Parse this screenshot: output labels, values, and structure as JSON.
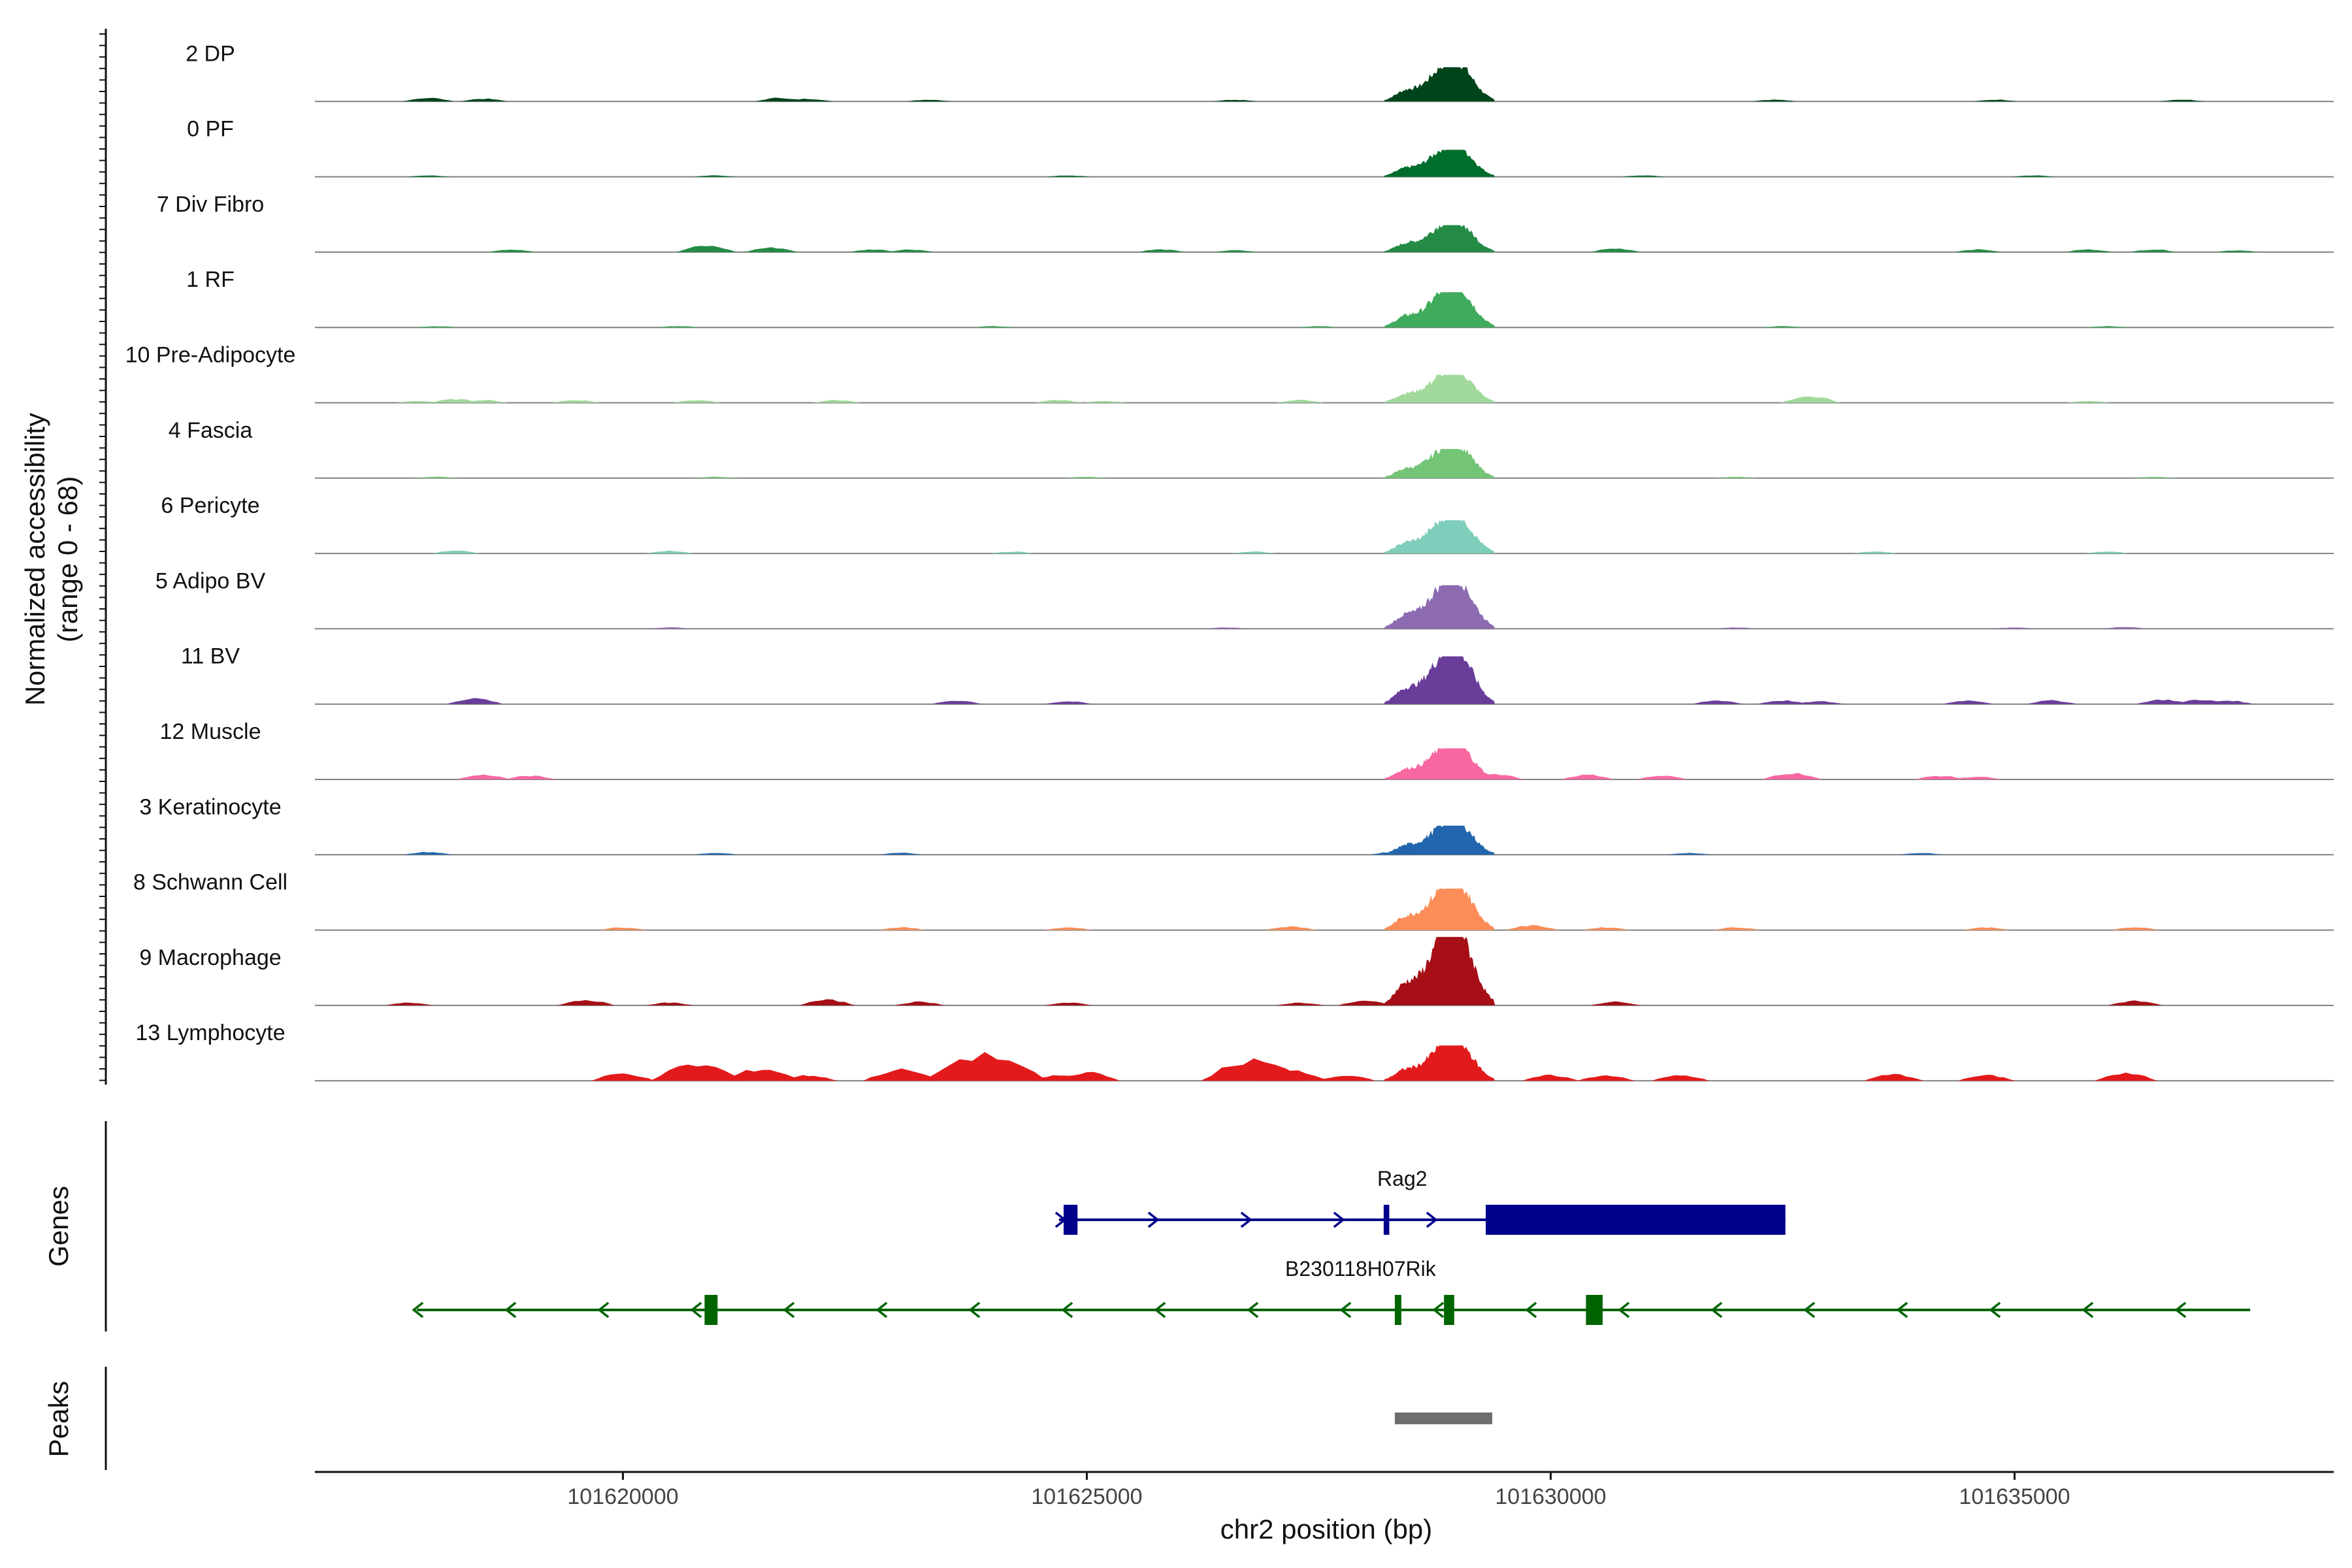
{
  "chart_data": {
    "type": "coverage",
    "chromosome": "chr2",
    "xlabel": "chr2 position (bp)",
    "ylabel_line1": "Normalized accessibility",
    "ylabel_line2": "(range 0 - 68)",
    "y_range": [
      0,
      68
    ],
    "x_range": [
      101616680,
      101638440
    ],
    "x_ticks": [
      101620000,
      101625000,
      101630000,
      101635000
    ],
    "x_tick_labels": [
      "101620000",
      "101625000",
      "101630000",
      "101635000"
    ],
    "tracks": [
      {
        "label": "2 DP",
        "color": "#00441b",
        "main_peak": 33,
        "bumps": [
          [
            101617900,
            4
          ],
          [
            101618500,
            3
          ],
          [
            101621700,
            4
          ],
          [
            101622000,
            3
          ],
          [
            101623300,
            2
          ],
          [
            101626600,
            2
          ],
          [
            101632400,
            2
          ],
          [
            101634800,
            2
          ],
          [
            101636800,
            2
          ]
        ]
      },
      {
        "label": "0 PF",
        "color": "#006d2c",
        "main_peak": 26,
        "bumps": [
          [
            101617900,
            1.5
          ],
          [
            101621000,
            1.5
          ],
          [
            101624800,
            1.5
          ],
          [
            101631000,
            1.5
          ],
          [
            101635200,
            1.5
          ]
        ]
      },
      {
        "label": "7 Div Fibro",
        "color": "#238b45",
        "main_peak": 26,
        "bumps": [
          [
            101618800,
            3
          ],
          [
            101620900,
            7
          ],
          [
            101621600,
            5
          ],
          [
            101622700,
            3
          ],
          [
            101623100,
            3
          ],
          [
            101625800,
            3
          ],
          [
            101626600,
            2
          ],
          [
            101630700,
            4
          ],
          [
            101634600,
            3
          ],
          [
            101635800,
            3
          ],
          [
            101636500,
            3
          ],
          [
            101637400,
            2
          ]
        ]
      },
      {
        "label": "1 RF",
        "color": "#41ab5d",
        "main_peak": 34,
        "bumps": [
          [
            101618000,
            1.5
          ],
          [
            101620600,
            1.5
          ],
          [
            101624000,
            1.5
          ],
          [
            101627500,
            1.5
          ],
          [
            101632500,
            1.5
          ],
          [
            101636000,
            1.5
          ]
        ]
      },
      {
        "label": "10 Pre-Adipocyte",
        "color": "#a1d99b",
        "main_peak": 27,
        "bumps": [
          [
            101617800,
            2
          ],
          [
            101618200,
            4
          ],
          [
            101618500,
            3
          ],
          [
            101619500,
            3
          ],
          [
            101620800,
            3
          ],
          [
            101622300,
            3
          ],
          [
            101624700,
            3
          ],
          [
            101625200,
            2
          ],
          [
            101627300,
            3
          ],
          [
            101632800,
            7
          ],
          [
            101635800,
            2
          ]
        ]
      },
      {
        "label": "4 Fascia",
        "color": "#74c476",
        "main_peak": 28,
        "bumps": [
          [
            101618000,
            1.5
          ],
          [
            101621000,
            1.5
          ],
          [
            101625000,
            1.5
          ],
          [
            101632000,
            1.5
          ],
          [
            101636500,
            1.5
          ]
        ]
      },
      {
        "label": "6 Pericyte",
        "color": "#7fcdbb",
        "main_peak": 32,
        "bumps": [
          [
            101618200,
            3
          ],
          [
            101620500,
            3
          ],
          [
            101624200,
            2
          ],
          [
            101626800,
            2
          ],
          [
            101633500,
            2
          ],
          [
            101636000,
            2
          ]
        ]
      },
      {
        "label": "5 Adipo BV",
        "color": "#8c6bb1",
        "main_peak": 42,
        "bumps": [
          [
            101620500,
            1.5
          ],
          [
            101626500,
            1.5
          ],
          [
            101632000,
            1.5
          ],
          [
            101635000,
            1.5
          ],
          [
            101636200,
            2
          ]
        ]
      },
      {
        "label": "11 BV",
        "color": "#6a3d9a",
        "main_peak": 46,
        "bumps": [
          [
            101618400,
            6
          ],
          [
            101623600,
            4
          ],
          [
            101624800,
            3
          ],
          [
            101631800,
            4
          ],
          [
            101632500,
            4
          ],
          [
            101632900,
            3
          ],
          [
            101634500,
            4
          ],
          [
            101635400,
            4
          ],
          [
            101636600,
            5
          ],
          [
            101637000,
            5
          ],
          [
            101637300,
            4
          ]
        ]
      },
      {
        "label": "12 Muscle",
        "color": "#f768a1",
        "main_peak": 30,
        "bumps": [
          [
            101618500,
            5
          ],
          [
            101619000,
            4
          ],
          [
            101629400,
            6
          ],
          [
            101630400,
            5
          ],
          [
            101631200,
            4
          ],
          [
            101632600,
            7
          ],
          [
            101634200,
            4
          ],
          [
            101634600,
            3
          ]
        ]
      },
      {
        "label": "3 Keratinocyte",
        "color": "#2166ac",
        "main_peak": 28,
        "bumps": [
          [
            101617900,
            3
          ],
          [
            101621000,
            2
          ],
          [
            101623000,
            2
          ],
          [
            101628300,
            3
          ],
          [
            101631500,
            2
          ],
          [
            101634000,
            2
          ]
        ]
      },
      {
        "label": "8 Schwann Cell",
        "color": "#fc8d59",
        "main_peak": 40,
        "bumps": [
          [
            101620000,
            3
          ],
          [
            101623000,
            3
          ],
          [
            101624800,
            3
          ],
          [
            101627200,
            4
          ],
          [
            101629800,
            5
          ],
          [
            101630600,
            3
          ],
          [
            101632000,
            3
          ],
          [
            101634700,
            3
          ],
          [
            101636300,
            3
          ]
        ]
      },
      {
        "label": "9 Macrophage",
        "color": "#a50f15",
        "main_peak": 66,
        "bumps": [
          [
            101617700,
            3
          ],
          [
            101619600,
            6
          ],
          [
            101620500,
            3
          ],
          [
            101622200,
            6
          ],
          [
            101623200,
            4
          ],
          [
            101624800,
            3
          ],
          [
            101627300,
            3
          ],
          [
            101628000,
            5
          ],
          [
            101630700,
            4
          ],
          [
            101636300,
            5
          ]
        ]
      },
      {
        "label": "13 Lymphocyte",
        "color": "#e31a1c",
        "main_peak": 34,
        "bumps": [
          [
            101620000,
            8
          ],
          [
            101620800,
            18
          ],
          [
            101621500,
            13
          ],
          [
            101622000,
            6
          ],
          [
            101623000,
            12
          ],
          [
            101623900,
            28
          ],
          [
            101624700,
            6
          ],
          [
            101625000,
            9
          ],
          [
            101626800,
            22
          ],
          [
            101627200,
            12
          ],
          [
            101627800,
            6
          ],
          [
            101630000,
            6
          ],
          [
            101630600,
            6
          ],
          [
            101631400,
            6
          ],
          [
            101633700,
            7
          ],
          [
            101634700,
            6
          ],
          [
            101636200,
            8
          ]
        ]
      }
    ],
    "genes": [
      {
        "name": "Rag2",
        "strand": "+",
        "color": "#00008b",
        "start": 101624700,
        "end": 101632530,
        "exons": [
          [
            101624750,
            101624900
          ],
          [
            101628200,
            101628260
          ],
          [
            101629300,
            101632530
          ]
        ]
      },
      {
        "name": "B230118H07Rik",
        "strand": "-",
        "color": "#006400",
        "start": 101617780,
        "end": 101637540,
        "exons": [
          [
            101620880,
            101621020
          ],
          [
            101628320,
            101628390
          ],
          [
            101628850,
            101628960
          ],
          [
            101630380,
            101630560
          ]
        ]
      }
    ],
    "genes_label": "Genes",
    "peaks_label": "Peaks",
    "peaks": [
      {
        "start": 101628320,
        "end": 101629370,
        "color": "#6e6e6e"
      }
    ]
  }
}
